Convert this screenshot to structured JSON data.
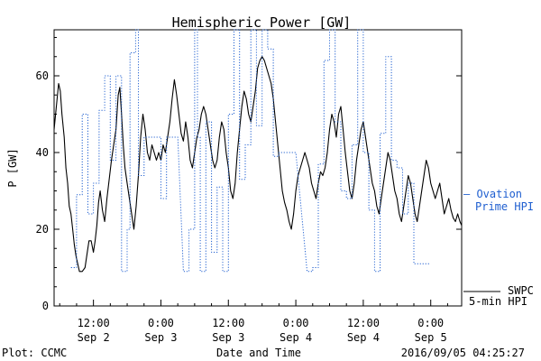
{
  "chart_data": {
    "type": "line",
    "title": "Hemispheric Power [GW]",
    "ylabel": "P [GW]",
    "xlabel": "Date and Time",
    "ylim": [
      0,
      72
    ],
    "yticks": [
      0,
      20,
      40,
      60
    ],
    "x_unit": "hours since 2016/09/02 00:00 UTC",
    "xlim": [
      5.0,
      77.5
    ],
    "xticks": [
      {
        "x": 12,
        "time": "12:00",
        "date": "Sep 2"
      },
      {
        "x": 24,
        "time": "0:00",
        "date": "Sep 3"
      },
      {
        "x": 36,
        "time": "12:00",
        "date": "Sep 3"
      },
      {
        "x": 48,
        "time": "0:00",
        "date": "Sep 4"
      },
      {
        "x": 60,
        "time": "12:00",
        "date": "Sep 4"
      },
      {
        "x": 72,
        "time": "0:00",
        "date": "Sep 5"
      }
    ],
    "series": [
      {
        "name": "SWPC 5-min HPI",
        "color": "#000000",
        "style": "solid",
        "points": [
          [
            5.0,
            46
          ],
          [
            5.4,
            52
          ],
          [
            5.8,
            58
          ],
          [
            6.1,
            56
          ],
          [
            6.4,
            50
          ],
          [
            6.8,
            44
          ],
          [
            7.1,
            36
          ],
          [
            7.4,
            32
          ],
          [
            7.7,
            26
          ],
          [
            8.0,
            24
          ],
          [
            8.3,
            20
          ],
          [
            8.6,
            16
          ],
          [
            8.9,
            13
          ],
          [
            9.2,
            11
          ],
          [
            9.5,
            9
          ],
          [
            10.0,
            9
          ],
          [
            10.5,
            10
          ],
          [
            10.9,
            14
          ],
          [
            11.2,
            17
          ],
          [
            11.6,
            17
          ],
          [
            12.0,
            14
          ],
          [
            12.3,
            17
          ],
          [
            12.6,
            21
          ],
          [
            12.9,
            27
          ],
          [
            13.2,
            30
          ],
          [
            13.6,
            25
          ],
          [
            14.0,
            22
          ],
          [
            14.4,
            28
          ],
          [
            14.8,
            33
          ],
          [
            15.2,
            38
          ],
          [
            15.6,
            42
          ],
          [
            16.0,
            46
          ],
          [
            16.4,
            55
          ],
          [
            16.7,
            57
          ],
          [
            17.0,
            50
          ],
          [
            17.3,
            42
          ],
          [
            17.6,
            36
          ],
          [
            18.0,
            32
          ],
          [
            18.4,
            28
          ],
          [
            18.8,
            24
          ],
          [
            19.2,
            20
          ],
          [
            19.6,
            26
          ],
          [
            20.0,
            34
          ],
          [
            20.4,
            44
          ],
          [
            20.8,
            50
          ],
          [
            21.2,
            46
          ],
          [
            21.6,
            40
          ],
          [
            22.0,
            38
          ],
          [
            22.4,
            42
          ],
          [
            22.8,
            40
          ],
          [
            23.2,
            38
          ],
          [
            23.6,
            40
          ],
          [
            24.0,
            38
          ],
          [
            24.4,
            42
          ],
          [
            24.8,
            40
          ],
          [
            25.2,
            44
          ],
          [
            25.6,
            48
          ],
          [
            26.0,
            54
          ],
          [
            26.4,
            59
          ],
          [
            26.8,
            55
          ],
          [
            27.2,
            50
          ],
          [
            27.6,
            45
          ],
          [
            28.0,
            43
          ],
          [
            28.4,
            48
          ],
          [
            28.8,
            44
          ],
          [
            29.2,
            38
          ],
          [
            29.6,
            36
          ],
          [
            30.0,
            40
          ],
          [
            30.4,
            44
          ],
          [
            30.8,
            46
          ],
          [
            31.2,
            50
          ],
          [
            31.6,
            52
          ],
          [
            32.0,
            50
          ],
          [
            32.4,
            46
          ],
          [
            32.8,
            42
          ],
          [
            33.2,
            38
          ],
          [
            33.6,
            36
          ],
          [
            34.0,
            38
          ],
          [
            34.4,
            44
          ],
          [
            34.8,
            48
          ],
          [
            35.2,
            46
          ],
          [
            35.6,
            40
          ],
          [
            36.0,
            36
          ],
          [
            36.4,
            30
          ],
          [
            36.8,
            28
          ],
          [
            37.2,
            32
          ],
          [
            37.6,
            40
          ],
          [
            38.0,
            46
          ],
          [
            38.4,
            52
          ],
          [
            38.8,
            56
          ],
          [
            39.2,
            54
          ],
          [
            39.6,
            50
          ],
          [
            40.0,
            48
          ],
          [
            40.4,
            52
          ],
          [
            40.8,
            56
          ],
          [
            41.2,
            62
          ],
          [
            41.6,
            64
          ],
          [
            42.0,
            65
          ],
          [
            42.4,
            64
          ],
          [
            42.8,
            62
          ],
          [
            43.2,
            60
          ],
          [
            43.6,
            58
          ],
          [
            44.0,
            54
          ],
          [
            44.4,
            48
          ],
          [
            44.8,
            42
          ],
          [
            45.2,
            36
          ],
          [
            45.6,
            30
          ],
          [
            46.0,
            27
          ],
          [
            46.4,
            25
          ],
          [
            46.8,
            22
          ],
          [
            47.2,
            20
          ],
          [
            47.6,
            24
          ],
          [
            48.0,
            30
          ],
          [
            48.4,
            34
          ],
          [
            48.8,
            36
          ],
          [
            49.2,
            38
          ],
          [
            49.6,
            40
          ],
          [
            50.0,
            38
          ],
          [
            50.4,
            36
          ],
          [
            50.8,
            32
          ],
          [
            51.2,
            30
          ],
          [
            51.6,
            28
          ],
          [
            52.0,
            32
          ],
          [
            52.4,
            35
          ],
          [
            52.8,
            34
          ],
          [
            53.2,
            36
          ],
          [
            53.6,
            40
          ],
          [
            54.0,
            46
          ],
          [
            54.4,
            50
          ],
          [
            54.8,
            48
          ],
          [
            55.2,
            44
          ],
          [
            55.6,
            50
          ],
          [
            56.0,
            52
          ],
          [
            56.4,
            46
          ],
          [
            56.8,
            40
          ],
          [
            57.2,
            35
          ],
          [
            57.6,
            30
          ],
          [
            58.0,
            28
          ],
          [
            58.4,
            32
          ],
          [
            58.8,
            38
          ],
          [
            59.2,
            42
          ],
          [
            59.6,
            46
          ],
          [
            60.0,
            48
          ],
          [
            60.4,
            44
          ],
          [
            60.8,
            40
          ],
          [
            61.2,
            36
          ],
          [
            61.6,
            32
          ],
          [
            62.0,
            30
          ],
          [
            62.4,
            26
          ],
          [
            62.8,
            24
          ],
          [
            63.2,
            28
          ],
          [
            63.6,
            32
          ],
          [
            64.0,
            36
          ],
          [
            64.4,
            40
          ],
          [
            64.8,
            38
          ],
          [
            65.2,
            34
          ],
          [
            65.6,
            30
          ],
          [
            66.0,
            28
          ],
          [
            66.4,
            24
          ],
          [
            66.8,
            22
          ],
          [
            67.2,
            26
          ],
          [
            67.6,
            30
          ],
          [
            68.0,
            34
          ],
          [
            68.4,
            32
          ],
          [
            68.8,
            28
          ],
          [
            69.2,
            24
          ],
          [
            69.6,
            22
          ],
          [
            70.0,
            26
          ],
          [
            70.4,
            30
          ],
          [
            70.8,
            34
          ],
          [
            71.2,
            38
          ],
          [
            71.6,
            36
          ],
          [
            72.0,
            32
          ],
          [
            72.4,
            30
          ],
          [
            72.8,
            28
          ],
          [
            73.2,
            30
          ],
          [
            73.6,
            32
          ],
          [
            74.0,
            28
          ],
          [
            74.4,
            24
          ],
          [
            74.8,
            26
          ],
          [
            75.2,
            28
          ],
          [
            75.6,
            25
          ],
          [
            76.0,
            23
          ],
          [
            76.4,
            22
          ],
          [
            76.8,
            24
          ],
          [
            77.2,
            22
          ],
          [
            77.5,
            21
          ]
        ]
      },
      {
        "name": "Ovation Prime HPI",
        "color": "#1f5fd0",
        "style": "dotted",
        "points": [
          [
            8.0,
            10
          ],
          [
            9.0,
            10
          ],
          [
            9.0,
            29
          ],
          [
            10.0,
            29
          ],
          [
            10.0,
            50
          ],
          [
            11.0,
            50
          ],
          [
            11.0,
            24
          ],
          [
            12.0,
            24
          ],
          [
            12.0,
            32
          ],
          [
            13.0,
            32
          ],
          [
            13.0,
            51
          ],
          [
            14.0,
            51
          ],
          [
            14.0,
            60
          ],
          [
            15.0,
            60
          ],
          [
            15.0,
            38
          ],
          [
            16.0,
            38
          ],
          [
            16.0,
            60
          ],
          [
            17.0,
            60
          ],
          [
            17.0,
            9
          ],
          [
            18.0,
            9
          ],
          [
            18.0,
            20
          ],
          [
            18.5,
            20
          ],
          [
            18.5,
            66
          ],
          [
            19.5,
            66
          ],
          [
            19.5,
            72
          ],
          [
            20.0,
            72
          ],
          [
            20.0,
            34
          ],
          [
            21.0,
            34
          ],
          [
            21.0,
            44
          ],
          [
            24.0,
            44
          ],
          [
            24.0,
            28
          ],
          [
            25.0,
            28
          ],
          [
            25.0,
            44
          ],
          [
            27.0,
            44
          ],
          [
            28.0,
            9
          ],
          [
            29.0,
            9
          ],
          [
            29.0,
            20
          ],
          [
            30.0,
            20
          ],
          [
            30.0,
            72
          ],
          [
            30.5,
            72
          ],
          [
            30.5,
            44
          ],
          [
            31.0,
            44
          ],
          [
            31.0,
            9
          ],
          [
            32.0,
            9
          ],
          [
            32.0,
            48
          ],
          [
            33.0,
            48
          ],
          [
            33.0,
            14
          ],
          [
            34.0,
            14
          ],
          [
            34.0,
            31
          ],
          [
            35.0,
            31
          ],
          [
            35.0,
            9
          ],
          [
            36.0,
            9
          ],
          [
            36.0,
            50
          ],
          [
            37.0,
            50
          ],
          [
            37.0,
            72
          ],
          [
            38.0,
            72
          ],
          [
            38.0,
            33
          ],
          [
            39.0,
            33
          ],
          [
            39.0,
            42
          ],
          [
            40.0,
            42
          ],
          [
            40.0,
            72
          ],
          [
            41.0,
            72
          ],
          [
            41.0,
            47
          ],
          [
            42.0,
            47
          ],
          [
            42.0,
            72
          ],
          [
            43.0,
            72
          ],
          [
            43.0,
            67
          ],
          [
            44.0,
            67
          ],
          [
            44.0,
            39
          ],
          [
            45.0,
            39
          ],
          [
            45.0,
            40
          ],
          [
            48.0,
            40
          ],
          [
            50.0,
            9
          ],
          [
            51.0,
            9
          ],
          [
            51.0,
            10
          ],
          [
            52.0,
            10
          ],
          [
            52.0,
            37
          ],
          [
            53.0,
            37
          ],
          [
            53.0,
            64
          ],
          [
            54.0,
            64
          ],
          [
            54.0,
            72
          ],
          [
            55.0,
            72
          ],
          [
            55.0,
            48
          ],
          [
            56.0,
            48
          ],
          [
            56.0,
            30
          ],
          [
            57.0,
            30
          ],
          [
            57.0,
            28
          ],
          [
            58.0,
            28
          ],
          [
            58.0,
            42
          ],
          [
            59.0,
            42
          ],
          [
            59.0,
            72
          ],
          [
            60.0,
            72
          ],
          [
            60.0,
            40
          ],
          [
            61.0,
            40
          ],
          [
            61.0,
            25
          ],
          [
            62.0,
            25
          ],
          [
            62.0,
            9
          ],
          [
            63.0,
            9
          ],
          [
            63.0,
            45
          ],
          [
            64.0,
            45
          ],
          [
            64.0,
            65
          ],
          [
            65.0,
            65
          ],
          [
            65.0,
            38
          ],
          [
            66.0,
            38
          ],
          [
            66.0,
            36
          ],
          [
            67.0,
            36
          ],
          [
            67.0,
            24
          ],
          [
            68.0,
            24
          ],
          [
            68.0,
            32
          ],
          [
            69.0,
            32
          ],
          [
            69.0,
            11
          ],
          [
            70.0,
            11
          ],
          [
            70.0,
            11
          ],
          [
            72.0,
            11
          ]
        ]
      }
    ]
  },
  "legend": {
    "ovation_line1": "— Ovation",
    "ovation_line2": "Prime HPI",
    "swpc_line1": "SWPC",
    "swpc_line2": "5-min HPI"
  },
  "footer": {
    "left": "Plot: CCMC",
    "center": "Date and Time",
    "right": "2016/09/05 04:25:27"
  }
}
